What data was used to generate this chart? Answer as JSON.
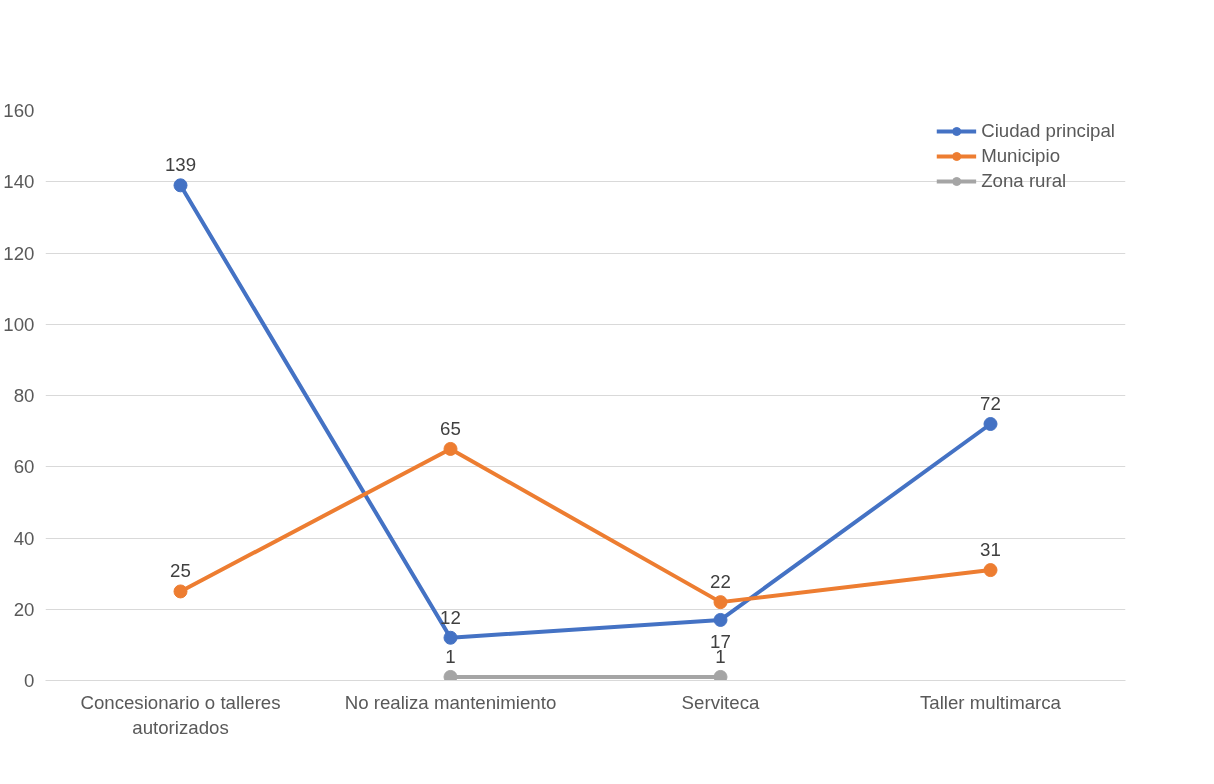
{
  "chart_data": {
    "type": "line",
    "categories": [
      "Concesionario o talleres autorizados",
      "No realiza mantenimiento",
      "Serviteca",
      "Taller multimarca"
    ],
    "series": [
      {
        "name": "Ciudad principal",
        "color": "#4472c4",
        "values": [
          139,
          12,
          17,
          72
        ]
      },
      {
        "name": "Municipio",
        "color": "#ed7d31",
        "values": [
          25,
          65,
          22,
          31
        ]
      },
      {
        "name": "Zona rural",
        "color": "#a5a5a5",
        "values": [
          null,
          1,
          1,
          null
        ]
      }
    ],
    "ylim": [
      0,
      160
    ],
    "yticks": [
      0,
      20,
      40,
      60,
      80,
      100,
      120,
      140,
      160
    ],
    "grid": "y",
    "legend": "top right",
    "marker": "circle",
    "line_style": "solid",
    "data_labels": true
  }
}
